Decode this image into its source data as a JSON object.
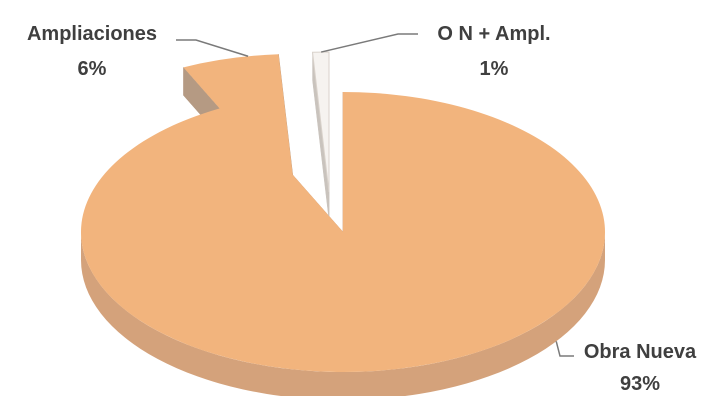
{
  "chart_data": {
    "type": "pie",
    "style": "3d-exploded",
    "slices": [
      {
        "label": "Obra Nueva",
        "percent_label": "93%",
        "value": 93,
        "color": "#F2B47D",
        "side_color": "#D4A27B"
      },
      {
        "label": "Ampliaciones",
        "percent_label": "6%",
        "value": 6,
        "color": "#F2B47D",
        "side_color": "#B59A83"
      },
      {
        "label": "O N + Ampl.",
        "percent_label": "1%",
        "value": 1,
        "color": "#F6F3F0",
        "side_color": "#C9C3BD"
      }
    ],
    "legend": "none",
    "data_labels": "outside with leader lines"
  }
}
